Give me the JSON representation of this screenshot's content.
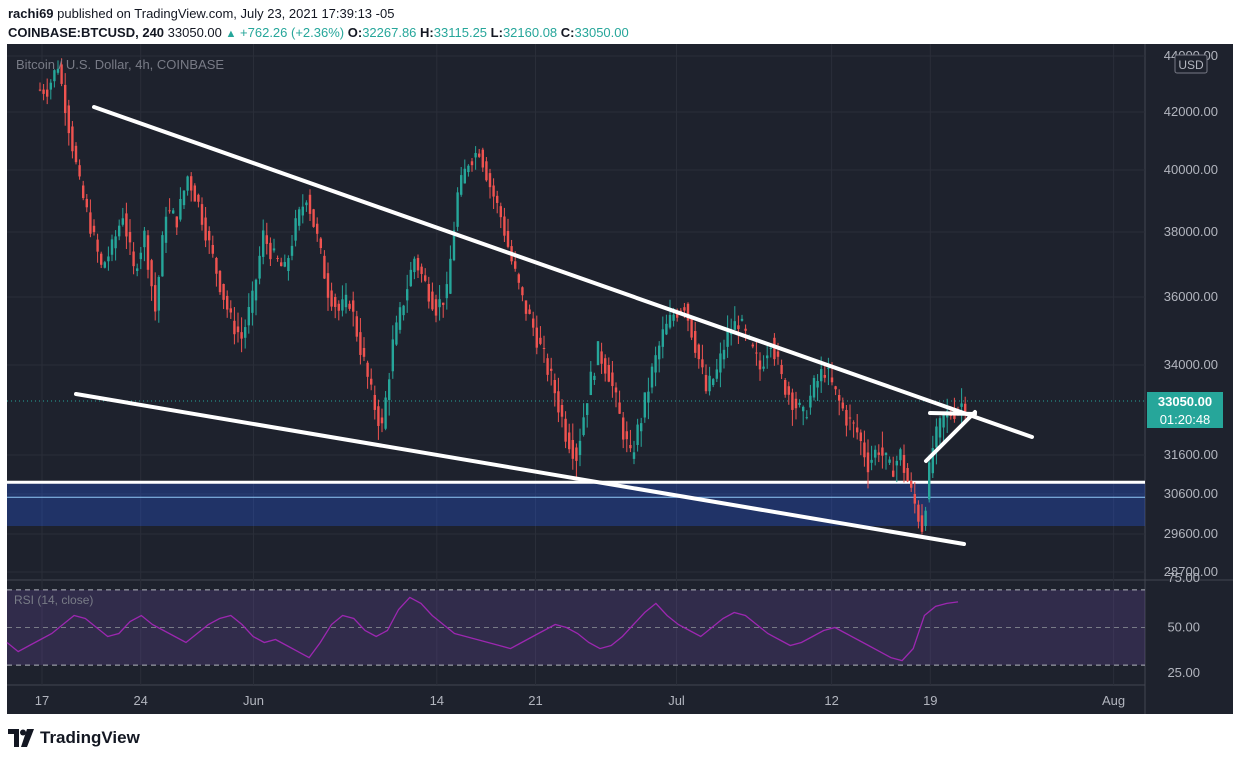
{
  "header": {
    "publisher": "rachi69",
    "published_text": "published on TradingView.com, July 23, 2021 17:39:13 -05",
    "symbol": "COINBASE:BTCUSD, 240",
    "last": "33050.00",
    "change": "+762.26 (+2.36%)",
    "o_label": "O:",
    "o_value": "32267.86",
    "h_label": "H:",
    "h_value": "33115.25",
    "l_label": "L:",
    "l_value": "32160.08",
    "c_label": "C:",
    "c_value": "33050.00"
  },
  "chart_data": {
    "type": "candlestick",
    "title": "Bitcoin / U.S. Dollar, 4h, COINBASE",
    "currency_badge": "USD",
    "price_axis_labels": [
      "44000.00",
      "42000.00",
      "40000.00",
      "38000.00",
      "36000.00",
      "34000.00",
      "31600.00",
      "30600.00",
      "29600.00",
      "28700.00"
    ],
    "price_axis_top_label": "44000.00",
    "current_price_label": "33050.00",
    "countdown_label": "01:20:48",
    "x_tick_labels": [
      "17",
      "24",
      "Jun",
      "14",
      "21",
      "Jul",
      "12",
      "19",
      "Aug"
    ],
    "x_ticks_dates": [
      "2021-05-17",
      "2021-05-24",
      "2021-06-01",
      "2021-06-14",
      "2021-06-21",
      "2021-07-01",
      "2021-07-12",
      "2021-07-19",
      "2021-08-01"
    ],
    "price_path_close": [
      [
        0,
        42800
      ],
      [
        1,
        43700
      ],
      [
        2,
        41500
      ],
      [
        3,
        39500
      ],
      [
        4,
        38200
      ],
      [
        5,
        36900
      ],
      [
        6,
        37500
      ],
      [
        7,
        38600
      ],
      [
        8,
        36800
      ],
      [
        9,
        37900
      ],
      [
        10,
        35600
      ],
      [
        11,
        38700
      ],
      [
        12,
        38400
      ],
      [
        13,
        39800
      ],
      [
        14,
        38900
      ],
      [
        15,
        37600
      ],
      [
        16,
        36400
      ],
      [
        17,
        35300
      ],
      [
        18,
        34800
      ],
      [
        19,
        35900
      ],
      [
        20,
        37900
      ],
      [
        21,
        37200
      ],
      [
        22,
        36800
      ],
      [
        23,
        38200
      ],
      [
        24,
        39200
      ],
      [
        25,
        37800
      ],
      [
        26,
        36200
      ],
      [
        27,
        35600
      ],
      [
        28,
        35900
      ],
      [
        29,
        34500
      ],
      [
        30,
        33200
      ],
      [
        31,
        32300
      ],
      [
        32,
        34600
      ],
      [
        33,
        35900
      ],
      [
        34,
        37200
      ],
      [
        35,
        36400
      ],
      [
        36,
        35700
      ],
      [
        37,
        36100
      ],
      [
        38,
        39200
      ],
      [
        39,
        40300
      ],
      [
        40,
        40700
      ],
      [
        41,
        39500
      ],
      [
        42,
        38500
      ],
      [
        43,
        37100
      ],
      [
        44,
        35900
      ],
      [
        45,
        35100
      ],
      [
        46,
        34200
      ],
      [
        47,
        33300
      ],
      [
        48,
        32200
      ],
      [
        49,
        31600
      ],
      [
        50,
        33200
      ],
      [
        51,
        34400
      ],
      [
        52,
        33800
      ],
      [
        53,
        32600
      ],
      [
        54,
        31500
      ],
      [
        55,
        32600
      ],
      [
        56,
        33800
      ],
      [
        57,
        34900
      ],
      [
        58,
        35500
      ],
      [
        59,
        35800
      ],
      [
        60,
        34600
      ],
      [
        61,
        33300
      ],
      [
        62,
        33800
      ],
      [
        63,
        34900
      ],
      [
        64,
        35300
      ],
      [
        65,
        34600
      ],
      [
        66,
        33900
      ],
      [
        67,
        34800
      ],
      [
        68,
        33600
      ],
      [
        69,
        33100
      ],
      [
        70,
        32600
      ],
      [
        71,
        33400
      ],
      [
        72,
        33900
      ],
      [
        73,
        33200
      ],
      [
        74,
        32600
      ],
      [
        75,
        32200
      ],
      [
        76,
        31400
      ],
      [
        77,
        31800
      ],
      [
        78,
        31200
      ],
      [
        79,
        31600
      ],
      [
        80,
        30600
      ],
      [
        81,
        29800
      ],
      [
        82,
        31800
      ],
      [
        83,
        32600
      ],
      [
        84,
        32800
      ],
      [
        85,
        33050
      ]
    ],
    "indicator": {
      "name": "RSI (14, close)",
      "axis_labels": [
        "75.00",
        "50.00",
        "25.00"
      ],
      "band_levels": [
        70,
        30
      ],
      "mid_level": 50,
      "values": [
        40,
        34,
        38,
        42,
        46,
        52,
        58,
        56,
        50,
        44,
        46,
        54,
        58,
        52,
        48,
        44,
        40,
        46,
        52,
        56,
        58,
        52,
        44,
        40,
        42,
        38,
        34,
        30,
        40,
        52,
        58,
        56,
        48,
        44,
        48,
        62,
        70,
        66,
        58,
        52,
        46,
        44,
        42,
        40,
        38,
        36,
        40,
        44,
        48,
        52,
        50,
        46,
        40,
        36,
        38,
        44,
        52,
        60,
        66,
        58,
        52,
        48,
        44,
        50,
        56,
        60,
        58,
        52,
        46,
        42,
        38,
        40,
        44,
        48,
        50,
        46,
        42,
        38,
        34,
        30,
        28,
        36,
        58,
        64,
        66,
        67
      ]
    },
    "trendlines_label": "",
    "support_zone": [
      30300,
      30900
    ],
    "colors": {
      "background": "#1e222d",
      "grid": "#2a2e39",
      "up": "#26a69a",
      "down": "#ef5350",
      "zone": "#2962ff",
      "rsi": "#9c27b0",
      "rsi_band": "#7e57c2",
      "price_label_bg": "#26a69a"
    }
  },
  "footer": {
    "brand": "TradingView"
  }
}
